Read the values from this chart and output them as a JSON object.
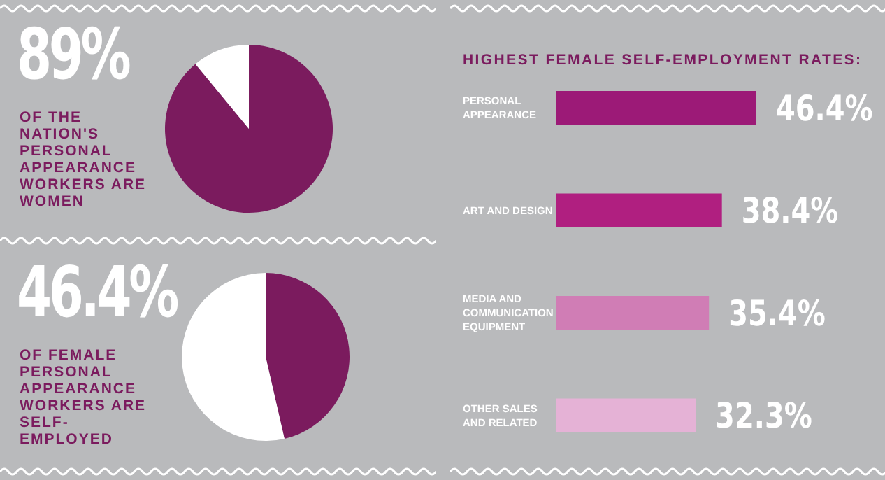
{
  "chart_data": [
    {
      "type": "pie",
      "title": "89%",
      "subtitle": "OF THE NATION'S PERSONAL APPEARANCE WORKERS ARE WOMEN",
      "categories": [
        null,
        null
      ],
      "values": [
        89,
        11
      ],
      "colors": [
        "#7b1b5e",
        "#ffffff"
      ]
    },
    {
      "type": "pie",
      "title": "46.4%",
      "subtitle": "OF FEMALE PERSONAL APPEARANCE WORKERS ARE SELF-EMPLOYED",
      "categories": [
        null,
        null
      ],
      "values": [
        46.4,
        53.6
      ],
      "colors": [
        "#7b1b5e",
        "#ffffff"
      ]
    },
    {
      "type": "bar",
      "orientation": "horizontal",
      "title": "HIGHEST FEMALE SELF-EMPLOYMENT RATES:",
      "categories": [
        "PERSONAL APPEARANCE",
        "ART AND DESIGN",
        "MEDIA AND COMMUNICATION EQUIPMENT",
        "OTHER SALES AND RELATED"
      ],
      "values": [
        46.4,
        38.4,
        35.4,
        32.3
      ],
      "colors": [
        "#9c1a77",
        "#b01f80",
        "#d07db5",
        "#e5b2d6"
      ],
      "value_labels": [
        "46.4%",
        "38.4%",
        "35.4%",
        "32.3%"
      ]
    }
  ]
}
